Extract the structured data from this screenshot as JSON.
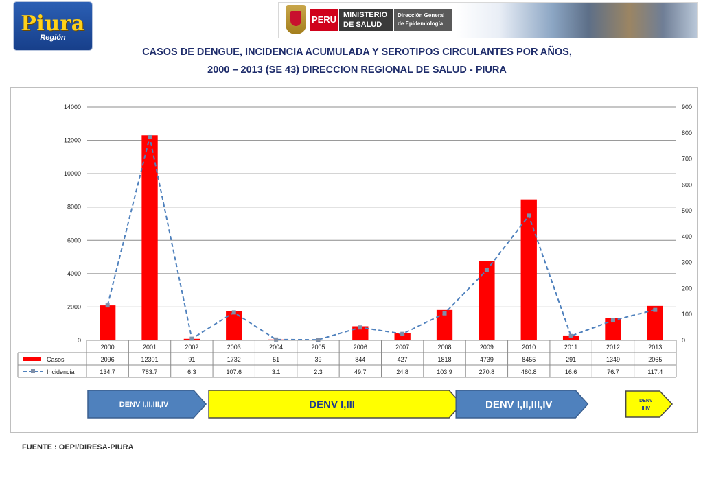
{
  "header": {
    "logo_text": "Piura",
    "logo_sub": "Región",
    "banner_peru": "PERU",
    "banner_ministry_1": "MINISTERIO",
    "banner_ministry_2": "DE SALUD",
    "banner_dir_1": "Dirección General",
    "banner_dir_2": "de Epidemiología"
  },
  "title_line1": "CASOS DE DENGUE, INCIDENCIA ACUMULADA Y SEROTIPOS CIRCULANTES POR AÑOS,",
  "title_line2": "2000 – 2013 (SE 43) DIRECCION REGIONAL DE SALUD - PIURA",
  "source": "FUENTE : OEPI/DIRESA-PIURA",
  "colors": {
    "bar": "#ff0000",
    "line": "#4f81bd",
    "title": "#1f2d6b",
    "arrow_blue": "#4f81bd",
    "arrow_yellow": "#ffff00"
  },
  "chart_data": {
    "type": "bar",
    "categories": [
      "2000",
      "2001",
      "2002",
      "2003",
      "2004",
      "2005",
      "2006",
      "2007",
      "2008",
      "2009",
      "2010",
      "2011",
      "2012",
      "2013"
    ],
    "series": [
      {
        "name": "Casos",
        "type": "bar",
        "axis": "left",
        "values": [
          2096,
          12301,
          91,
          1732,
          51,
          39,
          844,
          427,
          1818,
          4739,
          8455,
          291,
          1349,
          2065
        ],
        "labels": [
          "2096",
          "12301",
          "91",
          "1732",
          "51",
          "39",
          "844",
          "427",
          "1818",
          "4739",
          "8455",
          "291",
          "1349",
          "2065"
        ]
      },
      {
        "name": "Incidencia",
        "type": "line",
        "axis": "right",
        "values": [
          134.7,
          783.7,
          6.3,
          107.6,
          3.1,
          2.3,
          49.7,
          24.8,
          103.9,
          270.8,
          480.8,
          16.6,
          76.7,
          117.4
        ],
        "labels": [
          "134.7",
          "783.7",
          "6.3",
          "107.6",
          "3.1",
          "2.3",
          "49.7",
          "24.8",
          "103.9",
          "270.8",
          "480.8",
          "16.6",
          "76.7",
          "117.4"
        ]
      }
    ],
    "y_left": {
      "min": 0,
      "max": 14000,
      "ticks": [
        "0",
        "2000",
        "4000",
        "6000",
        "8000",
        "10000",
        "12000",
        "14000"
      ]
    },
    "y_right": {
      "min": 0,
      "max": 900,
      "ticks": [
        "0",
        "100",
        "200",
        "300",
        "400",
        "500",
        "600",
        "700",
        "800",
        "900"
      ]
    },
    "grid": true,
    "legend_placement": "data-table",
    "serotypes": [
      {
        "label": "DENV I,II,III,IV",
        "from": "2000",
        "to": "2002",
        "color": "blue"
      },
      {
        "label": "DENV I,III",
        "from": "2003",
        "to": "2008",
        "color": "yellow"
      },
      {
        "label": "DENV I,II,III,IV",
        "from": "2009",
        "to": "2011",
        "color": "blue"
      },
      {
        "label_1": "DENV",
        "label_2": "II,IV",
        "from": "2013",
        "to": "2013",
        "color": "yellow"
      }
    ]
  }
}
